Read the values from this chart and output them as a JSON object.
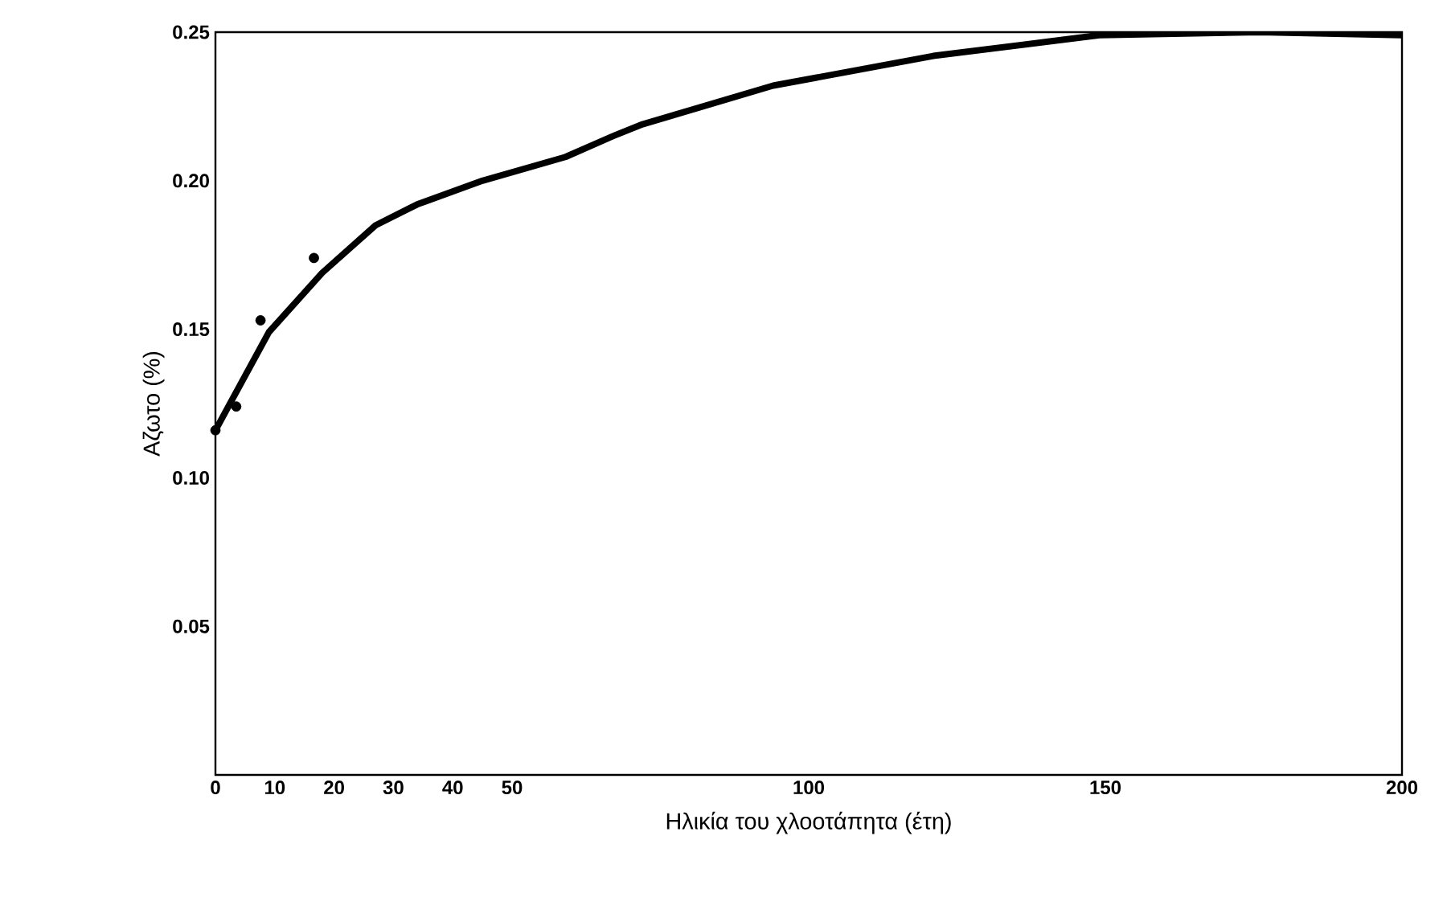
{
  "chart_data": {
    "type": "line",
    "xlabel": "Ηλικία του χλοοτάπητα (έτη)",
    "ylabel": "Αζωτο (%)",
    "xlim": [
      0,
      200
    ],
    "xticks": [
      0,
      10,
      20,
      30,
      40,
      50,
      100,
      150,
      200
    ],
    "ylim": [
      0,
      0.25
    ],
    "yticks": [
      {
        "value": 0.05,
        "label": "0.05"
      },
      {
        "value": 0.1,
        "label": "0.10"
      },
      {
        "value": 0.15,
        "label": "0.15"
      },
      {
        "value": 0.2,
        "label": "0.20"
      },
      {
        "value": 0.25,
        "label": "0.25"
      }
    ],
    "grid": false,
    "series": [
      {
        "color": "#000000",
        "marker": "none",
        "line_style": "solid",
        "x": [
          0,
          9,
          18,
          27,
          34,
          45,
          59,
          67,
          72,
          94,
          121,
          149,
          176,
          200
        ],
        "values": [
          0.116,
          0.149,
          0.169,
          0.185,
          0.192,
          0.2,
          0.208,
          0.215,
          0.219,
          0.232,
          0.242,
          0.249,
          0.25,
          0.249
        ]
      },
      {
        "type": "scatter",
        "color": "#000000",
        "marker": "circle",
        "x": [
          0,
          3.5,
          7.6,
          16.6
        ],
        "values": [
          0.116,
          0.124,
          0.153,
          0.174
        ]
      }
    ]
  }
}
